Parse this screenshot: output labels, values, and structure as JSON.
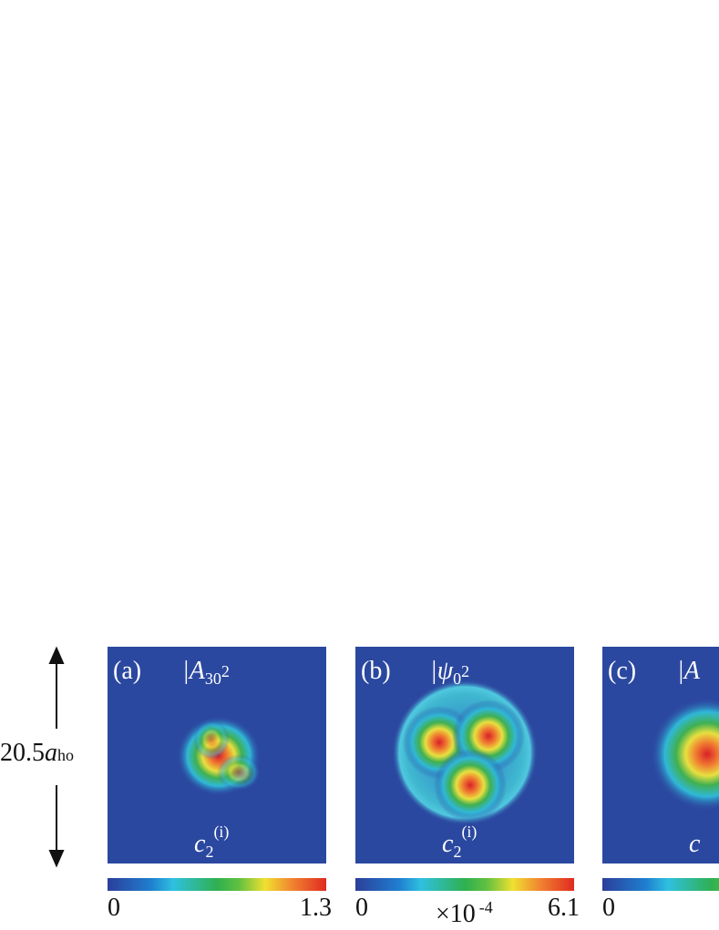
{
  "scale_label": {
    "value": "20.5",
    "unit": "a",
    "unit_sub": "ho"
  },
  "panels": [
    {
      "label": "(a)",
      "title": "|A",
      "title_sub": "30",
      "title_sup": "2",
      "state": "c",
      "state_sub": "2",
      "state_sup": "(i)",
      "colorbar": {
        "min": "0",
        "max": "1.3"
      }
    },
    {
      "label": "(b)",
      "title": "|ψ",
      "title_sub": "0",
      "title_sup": "2",
      "state": "c",
      "state_sub": "2",
      "state_sup": "(i)",
      "colorbar": {
        "min": "0",
        "max": "6.1",
        "multiplier": "×10",
        "exponent": "-4"
      }
    },
    {
      "label": "(c)",
      "title": "|A",
      "state": "c",
      "colorbar": {
        "min": "0"
      }
    }
  ]
}
